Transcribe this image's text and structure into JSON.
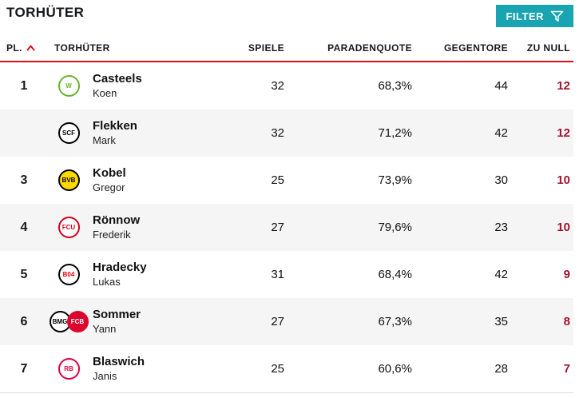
{
  "page": {
    "title": "TORHÜTER"
  },
  "filter": {
    "label": "FILTER",
    "icon": "filter-funnel-icon"
  },
  "table": {
    "headers": {
      "place": "PL.",
      "player": "TORHÜTER",
      "games": "SPIELE",
      "save_rate": "PARADENQUOTE",
      "goals_against": "GEGENTORE",
      "clean_sheets": "ZU NULL"
    },
    "sort": {
      "column": "PL.",
      "direction": "asc",
      "icon": "chevron-up-icon"
    },
    "rows": [
      {
        "place": "1",
        "last_name": "Casteels",
        "first_name": "Koen",
        "clubs": [
          "wolfsburg"
        ],
        "games": "32",
        "save_rate": "68,3%",
        "goals_against": "44",
        "clean_sheets": "12"
      },
      {
        "place": "",
        "last_name": "Flekken",
        "first_name": "Mark",
        "clubs": [
          "freiburg"
        ],
        "games": "32",
        "save_rate": "71,2%",
        "goals_against": "42",
        "clean_sheets": "12"
      },
      {
        "place": "3",
        "last_name": "Kobel",
        "first_name": "Gregor",
        "clubs": [
          "dortmund"
        ],
        "games": "25",
        "save_rate": "73,9%",
        "goals_against": "30",
        "clean_sheets": "10"
      },
      {
        "place": "4",
        "last_name": "Rönnow",
        "first_name": "Frederik",
        "clubs": [
          "union-berlin"
        ],
        "games": "27",
        "save_rate": "79,6%",
        "goals_against": "23",
        "clean_sheets": "10"
      },
      {
        "place": "5",
        "last_name": "Hradecky",
        "first_name": "Lukas",
        "clubs": [
          "leverkusen"
        ],
        "games": "31",
        "save_rate": "68,4%",
        "goals_against": "42",
        "clean_sheets": "9"
      },
      {
        "place": "6",
        "last_name": "Sommer",
        "first_name": "Yann",
        "clubs": [
          "gladbach",
          "bayern"
        ],
        "games": "27",
        "save_rate": "67,3%",
        "goals_against": "35",
        "clean_sheets": "8"
      },
      {
        "place": "7",
        "last_name": "Blaswich",
        "first_name": "Janis",
        "clubs": [
          "leipzig"
        ],
        "games": "25",
        "save_rate": "60,6%",
        "goals_against": "28",
        "clean_sheets": "7"
      }
    ]
  },
  "badges": {
    "wolfsburg": {
      "label": "W",
      "bg": "#ffffff",
      "fg": "#65b32e",
      "border": "#65b32e"
    },
    "freiburg": {
      "label": "SCF",
      "bg": "#ffffff",
      "fg": "#000000",
      "border": "#000000"
    },
    "dortmund": {
      "label": "BVB",
      "bg": "#ffd900",
      "fg": "#000000",
      "border": "#000000"
    },
    "union-berlin": {
      "label": "FCU",
      "bg": "#ffffff",
      "fg": "#d4011d",
      "border": "#d4011d"
    },
    "leverkusen": {
      "label": "B04",
      "bg": "#ffffff",
      "fg": "#e3000f",
      "border": "#000000"
    },
    "gladbach": {
      "label": "BMG",
      "bg": "#ffffff",
      "fg": "#000000",
      "border": "#000000"
    },
    "bayern": {
      "label": "FCB",
      "bg": "#dc052d",
      "fg": "#ffffff",
      "border": "#dc052d"
    },
    "leipzig": {
      "label": "RB",
      "bg": "#ffffff",
      "fg": "#dd013f",
      "border": "#dd013f"
    }
  },
  "colors": {
    "accent_red": "#d51317",
    "clean_sheets_red": "#a3132b",
    "filter_teal": "#18a5b1"
  }
}
